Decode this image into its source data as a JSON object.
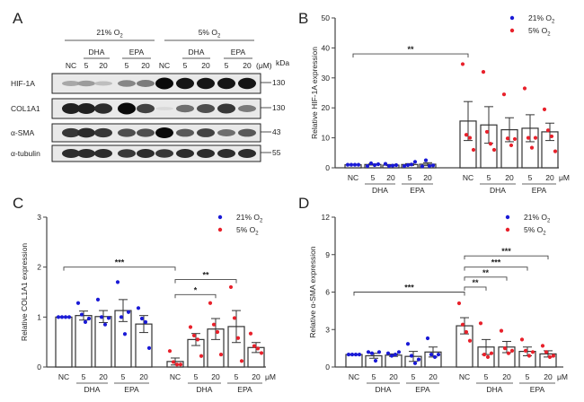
{
  "figure": {
    "panelA": {
      "letter": "A",
      "conditions": [
        {
          "label": "21% O",
          "sub": "2"
        },
        {
          "label": "5% O",
          "sub": "2"
        }
      ],
      "treatments": [
        "DHA",
        "EPA",
        "DHA",
        "EPA"
      ],
      "lanes": [
        "NC",
        "5",
        "20",
        "5",
        "20",
        "NC",
        "5",
        "20",
        "5",
        "20"
      ],
      "unit": "(μM)",
      "kda_label": "kDa",
      "blots": [
        {
          "name": "HIF-1A",
          "kda": "130",
          "intensity": [
            0.3,
            0.35,
            0.2,
            0.45,
            0.5,
            1.0,
            0.95,
            0.95,
            0.95,
            0.95
          ]
        },
        {
          "name": "COL1A1",
          "kda": "130",
          "intensity": [
            0.9,
            0.9,
            0.85,
            1.0,
            0.75,
            0.08,
            0.55,
            0.7,
            0.8,
            0.5
          ]
        },
        {
          "name": "α-SMA",
          "kda": "43",
          "intensity": [
            0.8,
            0.85,
            0.8,
            0.7,
            0.7,
            1.0,
            0.65,
            0.75,
            0.55,
            0.65
          ]
        },
        {
          "name": "α-tubulin",
          "kda": "55",
          "intensity": [
            0.85,
            0.85,
            0.85,
            0.8,
            0.85,
            0.8,
            0.85,
            0.85,
            0.85,
            0.85
          ]
        }
      ]
    }
  },
  "chart_data": [
    {
      "panel": "B",
      "type": "bar",
      "ylabel": "Relative HIF-1A expression",
      "ylim": [
        0,
        50
      ],
      "yticks": [
        0,
        10,
        20,
        30,
        40,
        50
      ],
      "categories": [
        "NC",
        "5",
        "20",
        "5",
        "20",
        "NC",
        "5",
        "20",
        "5",
        "20"
      ],
      "group_labels": [
        "DHA",
        "EPA",
        "DHA",
        "EPA"
      ],
      "unit": "μM",
      "legend": [
        {
          "label": "21% O",
          "sub": "2",
          "color": "#1a1ad6"
        },
        {
          "label": "5% O",
          "sub": "2",
          "color": "#e8212b"
        }
      ],
      "legend_position": "top-right",
      "series": [
        {
          "name": "21% O2",
          "color": "#1a1ad6",
          "means": [
            1.0,
            1.1,
            0.9,
            1.1,
            1.2
          ],
          "sem": [
            0,
            0.2,
            0.2,
            0.3,
            0.5
          ],
          "points": [
            [
              1,
              1,
              1,
              1
            ],
            [
              0.6,
              1.5,
              0.9,
              1.2
            ],
            [
              1.3,
              0.6,
              0.7,
              0.9
            ],
            [
              0.6,
              0.9,
              1.1,
              2.0
            ],
            [
              0.5,
              2.5,
              0.6,
              0.8
            ]
          ]
        },
        {
          "name": "5% O2",
          "color": "#e8212b",
          "means": [
            15.6,
            14.3,
            12.7,
            13.2,
            12.0
          ],
          "sem": [
            6.5,
            6.1,
            4.0,
            4.5,
            2.9
          ],
          "points": [
            [
              34.6,
              11.0,
              10.0,
              6.0
            ],
            [
              32.0,
              12.0,
              8.0,
              6.0
            ],
            [
              24.5,
              9.8,
              7.5,
              9.6
            ],
            [
              26.5,
              10.0,
              6.7,
              10.0
            ],
            [
              19.5,
              12.5,
              10.5,
              5.5
            ]
          ]
        }
      ],
      "significance": [
        {
          "from": 0,
          "to": 5,
          "label": "**",
          "y": 38
        }
      ]
    },
    {
      "panel": "C",
      "type": "bar",
      "ylabel": "Relative COL1A1 expression",
      "ylim": [
        0,
        3
      ],
      "yticks": [
        0,
        1,
        2,
        3
      ],
      "categories": [
        "NC",
        "5",
        "20",
        "5",
        "20",
        "NC",
        "5",
        "20",
        "5",
        "20"
      ],
      "group_labels": [
        "DHA",
        "EPA",
        "DHA",
        "EPA"
      ],
      "unit": "μM",
      "legend": [
        {
          "label": "21% O",
          "sub": "2",
          "color": "#1a1ad6"
        },
        {
          "label": "5% O",
          "sub": "2",
          "color": "#e8212b"
        }
      ],
      "legend_position": "top-right",
      "series": [
        {
          "name": "21% O2",
          "color": "#1a1ad6",
          "means": [
            1.0,
            1.03,
            1.01,
            1.13,
            0.86
          ],
          "sem": [
            0,
            0.09,
            0.12,
            0.22,
            0.17
          ],
          "points": [
            [
              1,
              1,
              1,
              1
            ],
            [
              1.28,
              1.05,
              0.9,
              0.97
            ],
            [
              1.35,
              1.0,
              0.85,
              0.98
            ],
            [
              1.7,
              1.0,
              0.66,
              1.1
            ],
            [
              1.18,
              0.97,
              0.9,
              0.38
            ]
          ]
        },
        {
          "name": "5% O2",
          "color": "#e8212b",
          "means": [
            0.11,
            0.55,
            0.76,
            0.81,
            0.39
          ],
          "sem": [
            0.07,
            0.12,
            0.21,
            0.32,
            0.1
          ],
          "points": [
            [
              0.32,
              0.1,
              0.05,
              0.05
            ],
            [
              0.8,
              0.63,
              0.55,
              0.22
            ],
            [
              1.28,
              0.85,
              0.7,
              0.25
            ],
            [
              1.6,
              0.98,
              0.58,
              0.12
            ],
            [
              0.67,
              0.42,
              0.37,
              0.28
            ]
          ]
        }
      ],
      "significance": [
        {
          "from": 0,
          "to": 5,
          "label": "***",
          "y": 2.0
        },
        {
          "from": 5,
          "to": 8,
          "label": "**",
          "y": 1.75
        },
        {
          "from": 5,
          "to": 7,
          "label": "*",
          "y": 1.45
        }
      ]
    },
    {
      "panel": "D",
      "type": "bar",
      "ylabel": "Relative α-SMA expression",
      "ylim": [
        0,
        12
      ],
      "yticks": [
        0,
        3,
        6,
        9,
        12
      ],
      "categories": [
        "NC",
        "5",
        "20",
        "5",
        "20",
        "NC",
        "5",
        "20",
        "5",
        "20"
      ],
      "group_labels": [
        "DHA",
        "EPA",
        "DHA",
        "EPA"
      ],
      "unit": "μM",
      "legend": [
        {
          "label": "21% O",
          "sub": "2",
          "color": "#1a1ad6"
        },
        {
          "label": "5% O",
          "sub": "2",
          "color": "#e8212b"
        }
      ],
      "legend_position": "top-right",
      "series": [
        {
          "name": "21% O2",
          "color": "#1a1ad6",
          "means": [
            1.0,
            0.9,
            0.95,
            0.85,
            1.2
          ],
          "sem": [
            0,
            0.2,
            0.1,
            0.4,
            0.4
          ],
          "points": [
            [
              1,
              1,
              1,
              1
            ],
            [
              1.2,
              1.1,
              0.5,
              1.2
            ],
            [
              1.1,
              0.9,
              1.0,
              1.2
            ],
            [
              1.85,
              0.9,
              0.3,
              0.6
            ],
            [
              2.3,
              1.0,
              0.8,
              1.0
            ]
          ]
        },
        {
          "name": "5% O2",
          "color": "#e8212b",
          "means": [
            3.3,
            1.6,
            1.6,
            1.25,
            1.05
          ],
          "sem": [
            0.65,
            0.6,
            0.45,
            0.35,
            0.25
          ],
          "points": [
            [
              5.1,
              3.4,
              2.8,
              2.1
            ],
            [
              3.5,
              1.0,
              0.8,
              1.1
            ],
            [
              2.9,
              1.5,
              1.1,
              1.3
            ],
            [
              2.2,
              1.3,
              0.9,
              1.2
            ],
            [
              1.7,
              1.2,
              0.8,
              0.9
            ]
          ]
        }
      ],
      "significance": [
        {
          "from": 0,
          "to": 5,
          "label": "***",
          "y": 6.0
        },
        {
          "from": 5,
          "to": 9,
          "label": "***",
          "y": 8.9
        },
        {
          "from": 5,
          "to": 8,
          "label": "***",
          "y": 8.0
        },
        {
          "from": 5,
          "to": 7,
          "label": "**",
          "y": 7.2
        },
        {
          "from": 5,
          "to": 6,
          "label": "**",
          "y": 6.4
        }
      ]
    }
  ]
}
